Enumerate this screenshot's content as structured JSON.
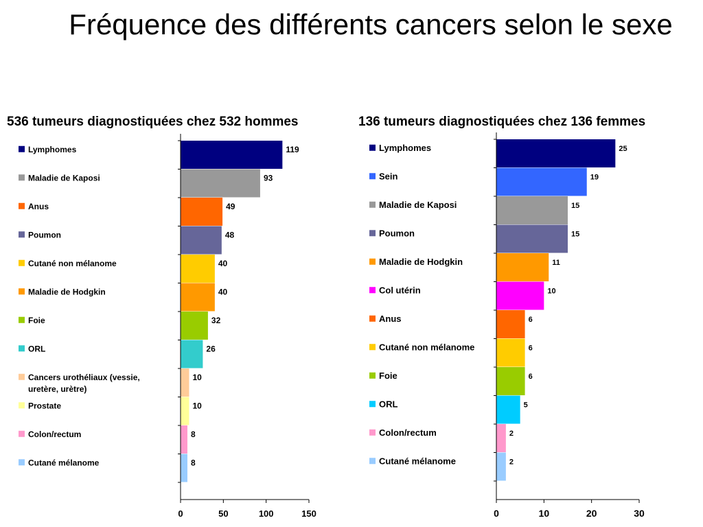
{
  "title": "Fréquence des différents cancers selon le sexe",
  "chart_data": [
    {
      "type": "bar",
      "orientation": "horizontal",
      "title": "536 tumeurs diagnostiquées chez 532 hommes",
      "categories": [
        "Lymphomes",
        "Maladie de Kaposi",
        "Anus",
        "Poumon",
        "Cutané non mélanome",
        "Maladie de Hodgkin",
        "Foie",
        "ORL",
        "Cancers urothéliaux (vessie, uretère, urètre)",
        "Prostate",
        "Colon/rectum",
        "Cutané mélanome"
      ],
      "values": [
        119,
        93,
        49,
        48,
        40,
        40,
        32,
        26,
        10,
        10,
        8,
        8
      ],
      "colors": [
        "#000080",
        "#999999",
        "#ff6600",
        "#666699",
        "#ffcc00",
        "#ff9900",
        "#99cc00",
        "#33cccc",
        "#ffcc99",
        "#ffff99",
        "#ff99cc",
        "#99ccff"
      ],
      "xlim": [
        0,
        150
      ],
      "xticks": [
        0,
        50,
        100,
        150
      ],
      "legend": "left",
      "grid": false
    },
    {
      "type": "bar",
      "orientation": "horizontal",
      "title": "136 tumeurs diagnostiquées chez 136 femmes",
      "categories": [
        "Lymphomes",
        "Sein",
        "Maladie de Kaposi",
        "Poumon",
        "Maladie de Hodgkin",
        "Col utérin",
        "Anus",
        "Cutané non mélanome",
        "Foie",
        "ORL",
        "Colon/rectum",
        "Cutané mélanome"
      ],
      "values": [
        25,
        19,
        15,
        15,
        11,
        10,
        6,
        6,
        6,
        5,
        2,
        2
      ],
      "colors": [
        "#000080",
        "#3366ff",
        "#999999",
        "#666699",
        "#ff9900",
        "#ff00ff",
        "#ff6600",
        "#ffcc00",
        "#99cc00",
        "#00ccff",
        "#ff99cc",
        "#99ccff"
      ],
      "xlim": [
        0,
        30
      ],
      "xticks": [
        0,
        10,
        20,
        30
      ],
      "legend": "left",
      "grid": false
    }
  ]
}
